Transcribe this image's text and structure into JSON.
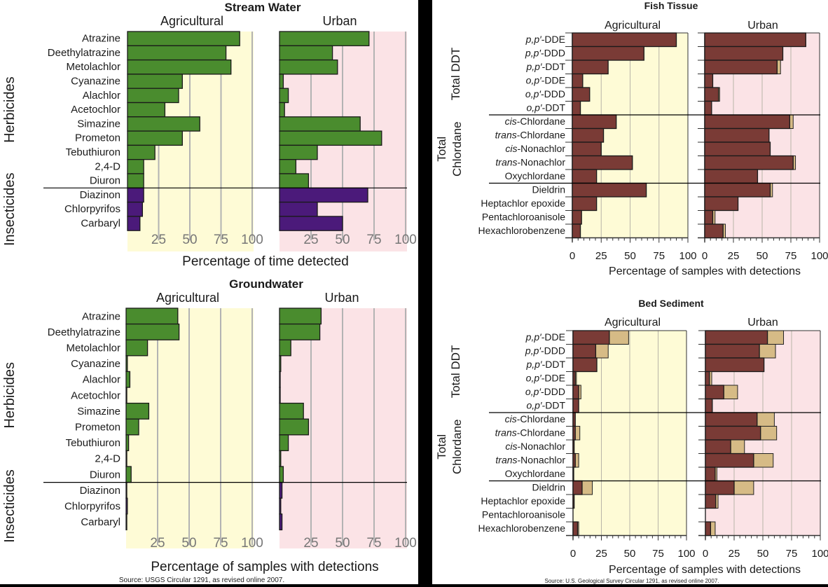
{
  "colors": {
    "herbicide": "#4a8c2e",
    "insecticide": "#4b1a7a",
    "detected": "#7a3b36",
    "detected_extra": "#d6bb86",
    "agricultural_bg": "#fefbd6",
    "urban_bg": "#fbe3e6",
    "gridline": "#b3b3b3",
    "separator": "#000000"
  },
  "chart_data": [
    {
      "id": "stream-water",
      "type": "bar",
      "orientation": "horizontal",
      "title": "Stream Water",
      "xlabel": "Percentage of time detected",
      "panels": [
        "Agricultural",
        "Urban"
      ],
      "xlim": [
        0,
        100
      ],
      "xticks": [
        "25",
        "50",
        "75",
        "100"
      ],
      "groups": [
        {
          "name": "Herbicides",
          "count": 11
        },
        {
          "name": "Insecticides",
          "count": 3
        }
      ],
      "categories": [
        "Atrazine",
        "Deethylatrazine",
        "Metolachlor",
        "Cyanazine",
        "Alachlor",
        "Acetochlor",
        "Simazine",
        "Prometon",
        "Tebuthiuron",
        "2,4-D",
        "Diuron",
        "Diazinon",
        "Chlorpyrifos",
        "Carbaryl"
      ],
      "series": [
        {
          "name": "Agricultural",
          "values": [
            90,
            79,
            83,
            44,
            41,
            30,
            58,
            44,
            22,
            13,
            13,
            13,
            12,
            10
          ]
        },
        {
          "name": "Urban",
          "values": [
            71,
            42,
            46,
            3,
            7,
            4,
            64,
            81,
            30,
            13,
            23,
            70,
            30,
            50
          ]
        }
      ],
      "source": ""
    },
    {
      "id": "groundwater",
      "type": "bar",
      "orientation": "horizontal",
      "title": "Groundwater",
      "xlabel": "Percentage of samples with detections",
      "panels": [
        "Agricultural",
        "Urban"
      ],
      "xlim": [
        0,
        100
      ],
      "xticks": [
        "25",
        "50",
        "75",
        "100"
      ],
      "groups": [
        {
          "name": "Herbicides",
          "count": 11
        },
        {
          "name": "Insecticides",
          "count": 3
        }
      ],
      "categories": [
        "Atrazine",
        "Deethylatrazine",
        "Metolachlor",
        "Cyanazine",
        "Alachlor",
        "Acetochlor",
        "Simazine",
        "Prometon",
        "Tebuthiuron",
        "2,4-D",
        "Diuron",
        "Diazinon",
        "Chlorpyrifos",
        "Carbaryl"
      ],
      "series": [
        {
          "name": "Agricultural",
          "values": [
            41,
            42,
            17,
            1,
            3,
            0.3,
            18,
            10,
            2,
            0.5,
            4,
            0.3,
            1,
            0.5
          ]
        },
        {
          "name": "Urban",
          "values": [
            33,
            32,
            9,
            1,
            0.3,
            0.5,
            19,
            23,
            7,
            1,
            3,
            2,
            1,
            2
          ]
        }
      ],
      "source": "Source: USGS Circular 1291, as revised online 2007."
    },
    {
      "id": "fish-tissue",
      "type": "bar",
      "orientation": "horizontal",
      "stacked": true,
      "title": "Fish Tissue",
      "xlabel": "Percentage of samples with detections",
      "panels": [
        "Agricultural",
        "Urban"
      ],
      "xlim": [
        0,
        100
      ],
      "xticks": [
        "0",
        "25",
        "50",
        "75",
        "100"
      ],
      "groups": [
        {
          "name": "Total DDT",
          "count": 6
        },
        {
          "name": "Total Chlordane",
          "count": 5
        },
        {
          "name": "",
          "count": 4
        }
      ],
      "categories": [
        {
          "prefix": "p,p′",
          "suffix": "-DDE"
        },
        {
          "prefix": "p,p′",
          "suffix": "-DDD"
        },
        {
          "prefix": "p,p′",
          "suffix": "-DDT"
        },
        {
          "prefix": "o,p′",
          "suffix": "-DDE"
        },
        {
          "prefix": "o,p′",
          "suffix": "-DDD"
        },
        {
          "prefix": "o,p′",
          "suffix": "-DDT"
        },
        {
          "prefix": "cis",
          "suffix": "-Chlordane"
        },
        {
          "prefix": "trans",
          "suffix": "-Chlordane"
        },
        {
          "prefix": "cis",
          "suffix": "-Nonachlor"
        },
        {
          "prefix": "trans",
          "suffix": "-Nonachlor"
        },
        {
          "prefix": "",
          "suffix": "Oxychlordane"
        },
        {
          "prefix": "",
          "suffix": "Dieldrin"
        },
        {
          "prefix": "",
          "suffix": "Heptachlor epoxide"
        },
        {
          "prefix": "",
          "suffix": "Pentachloroanisole"
        },
        {
          "prefix": "",
          "suffix": "Hexachlorobenzene"
        }
      ],
      "series": [
        {
          "name": "Agricultural",
          "values": [
            90,
            62,
            31,
            9,
            15,
            7,
            38,
            27,
            25,
            52,
            21,
            64,
            21,
            8,
            7
          ],
          "totals": [
            90,
            62,
            31,
            9,
            15,
            7,
            38,
            27,
            25,
            52,
            21,
            64,
            21,
            8,
            7
          ]
        },
        {
          "name": "Urban",
          "values": [
            88,
            68,
            63,
            7,
            12,
            6,
            74,
            56,
            57,
            77,
            46,
            57,
            29,
            7,
            16
          ],
          "totals": [
            88,
            68,
            66,
            7,
            13,
            6,
            77,
            56,
            57,
            79,
            46,
            59,
            29,
            9,
            18
          ]
        }
      ],
      "source": ""
    },
    {
      "id": "bed-sediment",
      "type": "bar",
      "orientation": "horizontal",
      "stacked": true,
      "title": "Bed Sediment",
      "xlabel": "Percentage of samples with detections",
      "panels": [
        "Agricultural",
        "Urban"
      ],
      "xlim": [
        0,
        100
      ],
      "xticks": [
        "0",
        "25",
        "50",
        "75",
        "100"
      ],
      "groups": [
        {
          "name": "Total DDT",
          "count": 6
        },
        {
          "name": "Total Chlordane",
          "count": 5
        },
        {
          "name": "",
          "count": 4
        }
      ],
      "categories": [
        {
          "prefix": "p,p′",
          "suffix": "-DDE"
        },
        {
          "prefix": "p,p′",
          "suffix": "-DDD"
        },
        {
          "prefix": "p,p′",
          "suffix": "-DDT"
        },
        {
          "prefix": "o,p′",
          "suffix": "-DDE"
        },
        {
          "prefix": "o,p′",
          "suffix": "-DDD"
        },
        {
          "prefix": "o,p′",
          "suffix": "-DDT"
        },
        {
          "prefix": "cis",
          "suffix": "-Chlordane"
        },
        {
          "prefix": "trans",
          "suffix": "-Chlordane"
        },
        {
          "prefix": "cis",
          "suffix": "-Nonachlor"
        },
        {
          "prefix": "trans",
          "suffix": "-Nonachlor"
        },
        {
          "prefix": "",
          "suffix": "Oxychlordane"
        },
        {
          "prefix": "",
          "suffix": "Dieldrin"
        },
        {
          "prefix": "",
          "suffix": "Heptachlor epoxide"
        },
        {
          "prefix": "",
          "suffix": "Pentachloroanisole"
        },
        {
          "prefix": "",
          "suffix": "Hexachlorobenzene"
        }
      ],
      "series": [
        {
          "name": "Agricultural",
          "values": [
            32,
            20,
            21,
            2,
            5,
            5,
            2,
            2,
            1,
            2,
            0.3,
            8,
            1,
            0,
            4
          ],
          "totals": [
            49,
            31,
            21,
            3,
            7,
            5,
            2,
            6,
            1,
            5,
            0.3,
            17,
            1,
            0,
            5
          ]
        },
        {
          "name": "Urban",
          "values": [
            54,
            47,
            51,
            3.5,
            16,
            6,
            45,
            48,
            22,
            42,
            8.5,
            25,
            9,
            0,
            4.5
          ],
          "totals": [
            68,
            61,
            51,
            5.5,
            28,
            6,
            60,
            62,
            34,
            59,
            10,
            42,
            11,
            0,
            8.5
          ]
        }
      ],
      "source": "Source: U.S. Geological Survey Circular 1291, as revised online 2007."
    }
  ]
}
